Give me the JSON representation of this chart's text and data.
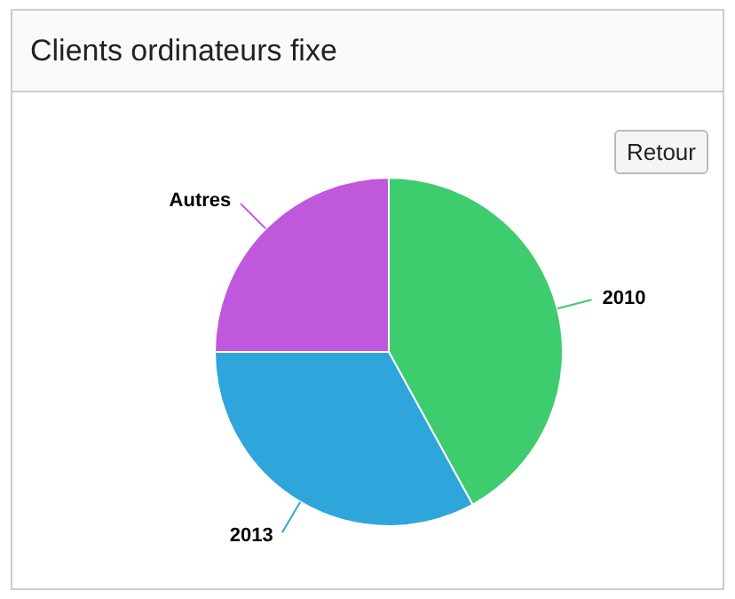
{
  "chart_data": {
    "type": "pie",
    "title": "Clients ordinateurs fixe",
    "categories": [
      "2010",
      "2013",
      "Autres"
    ],
    "values": [
      42,
      33,
      25
    ],
    "colors": [
      "#3dcc6e",
      "#2ea6db",
      "#c058db"
    ],
    "annotations": [
      "Retour"
    ],
    "legend": false
  }
}
